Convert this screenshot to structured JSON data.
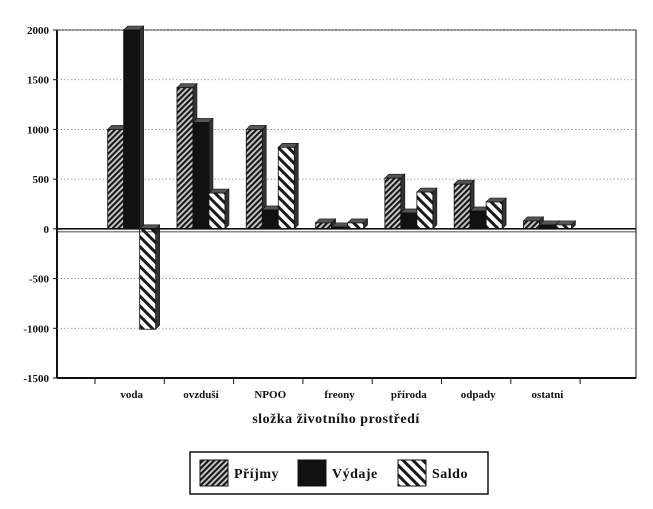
{
  "chart_data": {
    "type": "bar",
    "categories": [
      "voda",
      "ovzduší",
      "NPOO",
      "freony",
      "příroda",
      "odpady",
      "ostatní"
    ],
    "series": [
      {
        "name": "Příjmy",
        "values": [
          1000,
          1420,
          1000,
          60,
          510,
          450,
          80
        ],
        "pattern": "dense-hatch"
      },
      {
        "name": "Výdaje",
        "values": [
          2000,
          1070,
          190,
          20,
          160,
          180,
          40
        ],
        "pattern": "solid"
      },
      {
        "name": "Saldo",
        "values": [
          -1010,
          360,
          820,
          60,
          370,
          270,
          40
        ],
        "pattern": "wide-hatch"
      }
    ],
    "title": "",
    "xlabel": "složka životního prostředí",
    "ylabel": "",
    "ylim": [
      -1500,
      2000
    ],
    "yticks": [
      2000,
      1500,
      1000,
      500,
      0,
      -500,
      -1000,
      -1500
    ],
    "grid": true,
    "legend": "bottom-center",
    "colors": {
      "bar_fill": "#111111",
      "hatch_bg": "#cfcfcf",
      "axis": "#111111",
      "grid": "#888888"
    }
  }
}
